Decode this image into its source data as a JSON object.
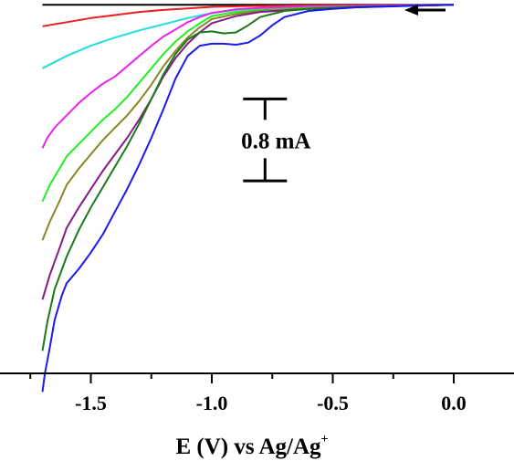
{
  "chart_data": {
    "type": "line",
    "title": "",
    "xlabel": "E (V) vs Ag/Ag",
    "xlabel_superscript": "+",
    "ylabel": "",
    "xlim": [
      -1.8,
      0.2
    ],
    "ylim": [
      -3.6,
      0.02
    ],
    "x_ticks": [
      -1.5,
      -1.0,
      -0.5,
      0.0
    ],
    "x_tick_labels": [
      "-1.5",
      "-1.0",
      "-0.5",
      "0.0"
    ],
    "x_minor_ticks": [
      -1.75,
      -1.25,
      -0.75,
      -0.25
    ],
    "legend": "none",
    "grid": false,
    "scan_direction": "negative",
    "scale_bar": {
      "label": "0.8 mA",
      "value_mA": 0.8,
      "x": -0.78,
      "y_top": -0.92,
      "y_bottom": -1.72
    },
    "series": [
      {
        "color": "#000000",
        "x": [
          -1.7,
          -1.5,
          -1.3,
          -1.1,
          -0.9,
          -0.7,
          -0.5,
          -0.3,
          0.0
        ],
        "y": [
          0.0,
          0.0,
          0.0,
          0.0,
          0.0,
          0.0,
          0.0,
          0.0,
          0.0
        ]
      },
      {
        "color": "#ee1c1c",
        "x": [
          -1.7,
          -1.6,
          -1.5,
          -1.4,
          -1.3,
          -1.2,
          -1.1,
          -1.0,
          -0.9,
          -0.7,
          -0.5,
          -0.3,
          0.0
        ],
        "y": [
          -0.21,
          -0.17,
          -0.13,
          -0.1,
          -0.07,
          -0.05,
          -0.035,
          -0.02,
          -0.015,
          -0.008,
          -0.005,
          -0.003,
          0.0
        ]
      },
      {
        "color": "#22dede",
        "x": [
          -1.7,
          -1.6,
          -1.5,
          -1.4,
          -1.3,
          -1.2,
          -1.1,
          -1.0,
          -0.9,
          -0.7,
          -0.5,
          -0.3,
          0.0
        ],
        "y": [
          -0.62,
          -0.5,
          -0.4,
          -0.32,
          -0.25,
          -0.19,
          -0.13,
          -0.08,
          -0.05,
          -0.025,
          -0.015,
          -0.008,
          0.0
        ]
      },
      {
        "color": "#ee22ee",
        "x": [
          -1.7,
          -1.68,
          -1.65,
          -1.6,
          -1.55,
          -1.5,
          -1.45,
          -1.4,
          -1.35,
          -1.3,
          -1.25,
          -1.2,
          -1.15,
          -1.1,
          -1.05,
          -1.0,
          -0.9,
          -0.8,
          -0.6,
          -0.4,
          -0.2,
          0.0
        ],
        "y": [
          -1.4,
          -1.3,
          -1.2,
          -1.08,
          -0.96,
          -0.86,
          -0.77,
          -0.7,
          -0.6,
          -0.5,
          -0.4,
          -0.31,
          -0.24,
          -0.17,
          -0.12,
          -0.08,
          -0.045,
          -0.03,
          -0.015,
          -0.01,
          -0.005,
          0.0
        ]
      },
      {
        "color": "#22ee22",
        "x": [
          -1.7,
          -1.67,
          -1.63,
          -1.6,
          -1.55,
          -1.5,
          -1.45,
          -1.4,
          -1.35,
          -1.3,
          -1.25,
          -1.2,
          -1.15,
          -1.1,
          -1.05,
          -1.0,
          -0.9,
          -0.8,
          -0.6,
          -0.4,
          -0.2,
          0.0
        ],
        "y": [
          -1.92,
          -1.76,
          -1.6,
          -1.48,
          -1.36,
          -1.24,
          -1.12,
          -1.02,
          -0.9,
          -0.76,
          -0.62,
          -0.48,
          -0.36,
          -0.26,
          -0.18,
          -0.11,
          -0.07,
          -0.05,
          -0.03,
          -0.02,
          -0.01,
          0.0
        ]
      },
      {
        "color": "#888822",
        "x": [
          -1.7,
          -1.67,
          -1.63,
          -1.6,
          -1.55,
          -1.5,
          -1.45,
          -1.4,
          -1.35,
          -1.3,
          -1.25,
          -1.2,
          -1.15,
          -1.1,
          -1.05,
          -1.0,
          -0.9,
          -0.8,
          -0.6,
          -0.4,
          -0.2,
          0.0
        ],
        "y": [
          -2.3,
          -2.12,
          -1.92,
          -1.76,
          -1.6,
          -1.46,
          -1.32,
          -1.2,
          -1.08,
          -0.94,
          -0.78,
          -0.6,
          -0.45,
          -0.32,
          -0.22,
          -0.14,
          -0.09,
          -0.06,
          -0.035,
          -0.02,
          -0.01,
          0.0
        ]
      },
      {
        "color": "#881a88",
        "x": [
          -1.7,
          -1.67,
          -1.63,
          -1.6,
          -1.55,
          -1.5,
          -1.45,
          -1.4,
          -1.35,
          -1.3,
          -1.25,
          -1.2,
          -1.15,
          -1.1,
          -1.05,
          -1.0,
          -0.9,
          -0.8,
          -0.6,
          -0.4,
          -0.2,
          0.0
        ],
        "y": [
          -2.88,
          -2.64,
          -2.38,
          -2.18,
          -1.98,
          -1.8,
          -1.62,
          -1.46,
          -1.3,
          -1.12,
          -0.92,
          -0.7,
          -0.52,
          -0.38,
          -0.27,
          -0.18,
          -0.11,
          -0.07,
          -0.04,
          -0.025,
          -0.012,
          0.0
        ]
      },
      {
        "color": "#1a7a1a",
        "x": [
          -1.7,
          -1.68,
          -1.65,
          -1.6,
          -1.55,
          -1.5,
          -1.45,
          -1.4,
          -1.35,
          -1.3,
          -1.25,
          -1.2,
          -1.15,
          -1.1,
          -1.05,
          -1.0,
          -0.95,
          -0.9,
          -0.85,
          -0.8,
          -0.7,
          -0.6,
          -0.5,
          -0.4,
          -0.2,
          0.0
        ],
        "y": [
          -3.38,
          -3.1,
          -2.78,
          -2.46,
          -2.2,
          -1.98,
          -1.78,
          -1.58,
          -1.38,
          -1.16,
          -0.92,
          -0.68,
          -0.48,
          -0.34,
          -0.27,
          -0.26,
          -0.28,
          -0.27,
          -0.2,
          -0.12,
          -0.06,
          -0.04,
          -0.03,
          -0.02,
          -0.01,
          0.0
        ]
      },
      {
        "color": "#1a1aee",
        "x": [
          -1.7,
          -1.69,
          -1.67,
          -1.65,
          -1.62,
          -1.6,
          -1.55,
          -1.5,
          -1.45,
          -1.4,
          -1.35,
          -1.3,
          -1.25,
          -1.2,
          -1.15,
          -1.1,
          -1.05,
          -1.0,
          -0.95,
          -0.9,
          -0.85,
          -0.8,
          -0.75,
          -0.7,
          -0.6,
          -0.5,
          -0.4,
          -0.2,
          0.0
        ],
        "y": [
          -3.78,
          -3.6,
          -3.35,
          -3.08,
          -2.84,
          -2.72,
          -2.58,
          -2.42,
          -2.24,
          -2.02,
          -1.8,
          -1.56,
          -1.3,
          -1.02,
          -0.72,
          -0.5,
          -0.4,
          -0.38,
          -0.38,
          -0.39,
          -0.37,
          -0.3,
          -0.2,
          -0.12,
          -0.06,
          -0.04,
          -0.025,
          -0.01,
          0.0
        ]
      }
    ]
  }
}
